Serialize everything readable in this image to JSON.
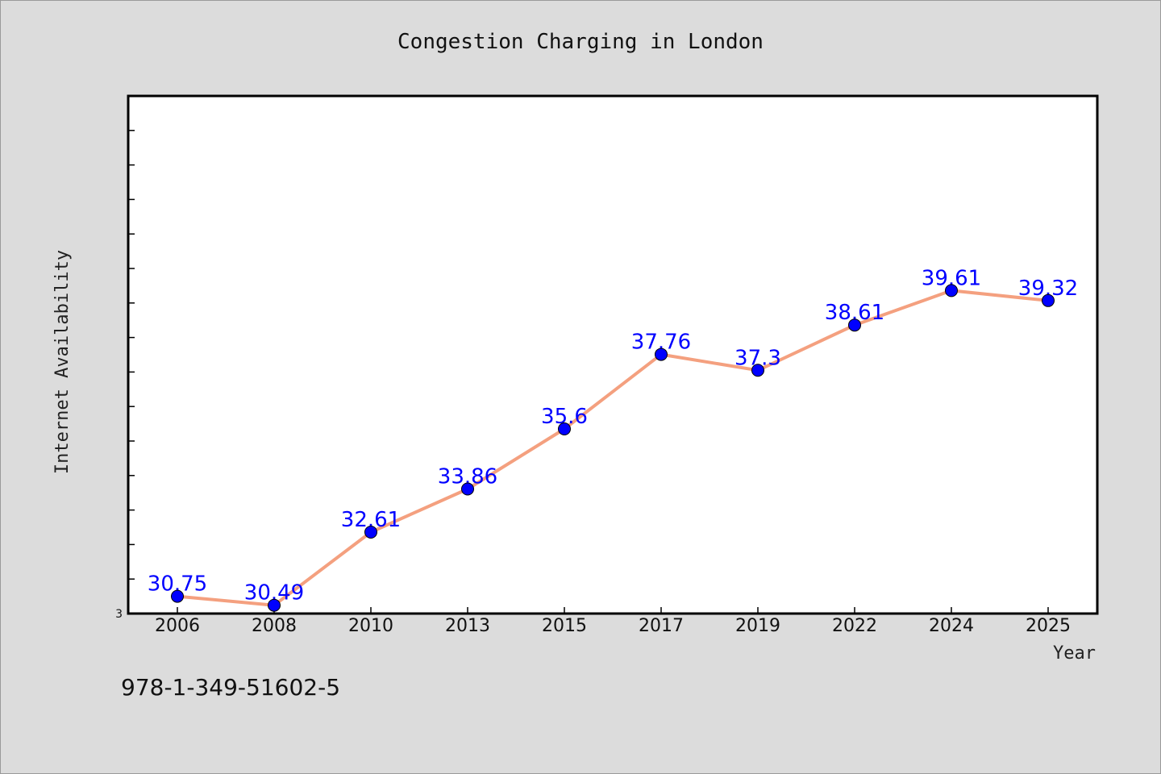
{
  "chart_data": {
    "type": "line",
    "title": "Congestion Charging in London",
    "xlabel": "Year",
    "ylabel": "Internet Availability",
    "categories": [
      "2006",
      "2008",
      "2010",
      "2013",
      "2015",
      "2017",
      "2019",
      "2022",
      "2024",
      "2025"
    ],
    "series": [
      {
        "values": [
          30.75,
          30.49,
          32.61,
          33.86,
          35.6,
          37.76,
          37.3,
          38.61,
          39.61,
          39.32
        ],
        "labels": [
          "30.75",
          "30.49",
          "32.61",
          "33.86",
          "35.6",
          "37.76",
          "37.3",
          "38.61",
          "39.61",
          "39.32"
        ],
        "line_color": "#f4a07f",
        "marker_color": "#0000ff"
      }
    ],
    "ytick_labels": [
      "3"
    ],
    "ylim": [
      30.25,
      45.25
    ],
    "grid": false,
    "legend": "none"
  },
  "caption": "978-1-349-51602-5"
}
